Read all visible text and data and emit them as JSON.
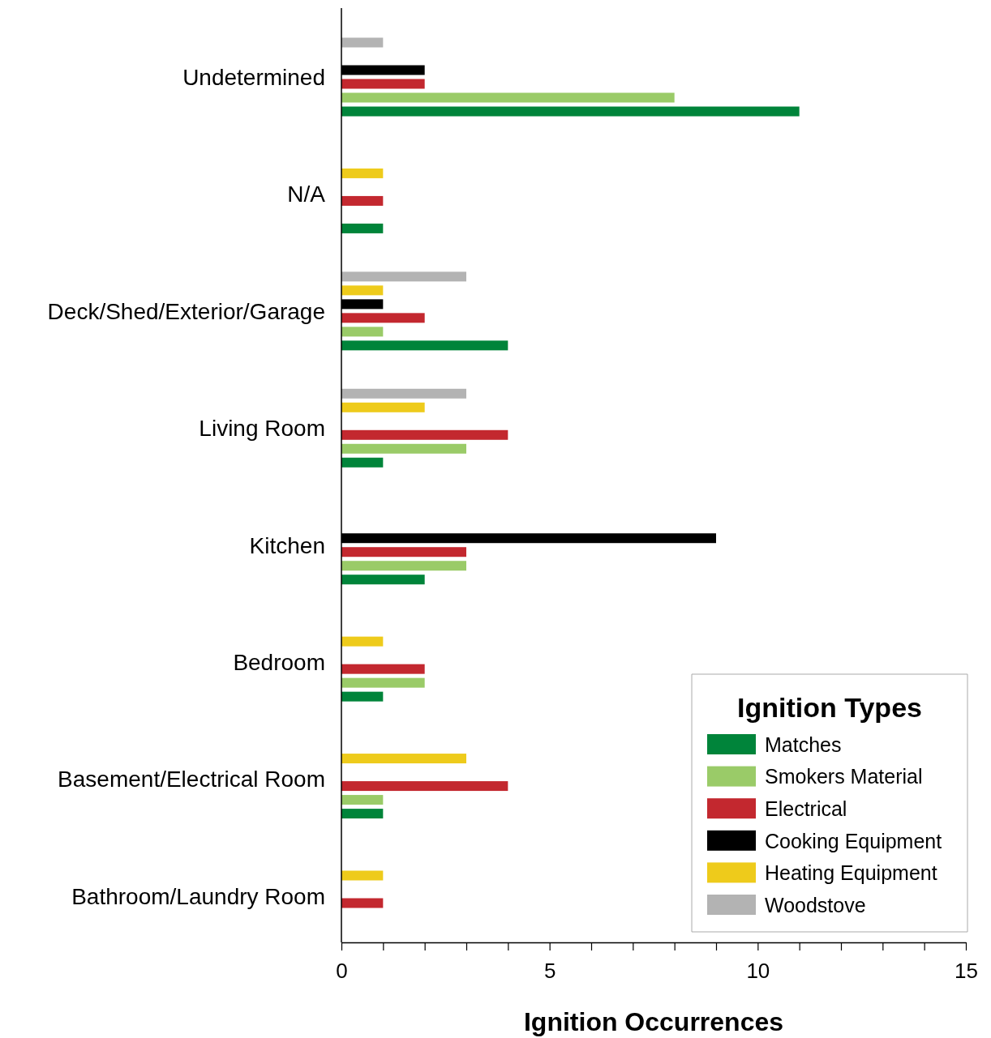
{
  "chart_data": {
    "type": "bar",
    "orientation": "horizontal",
    "xlabel": "Ignition Occurrences",
    "legend_title": "Ignition Types",
    "legend": "bottom right",
    "grid": false,
    "categories": [
      "Undetermined",
      "N/A",
      "Deck/Shed/Exterior/Garage",
      "Living Room",
      "Kitchen",
      "Bedroom",
      "Basement/Electrical Room",
      "Bathroom/Laundry Room"
    ],
    "xlim": [
      0,
      15
    ],
    "xticks": [
      0,
      {
        "value": 1,
        "label": null
      },
      {
        "value": 2,
        "label": null
      },
      {
        "value": 3,
        "label": null
      },
      {
        "value": 4,
        "label": null
      },
      5,
      {
        "value": 6,
        "label": null
      },
      {
        "value": 7,
        "label": null
      },
      {
        "value": 8,
        "label": null
      },
      {
        "value": 9,
        "label": null
      },
      10,
      {
        "value": 11,
        "label": null
      },
      {
        "value": 12,
        "label": null
      },
      {
        "value": 13,
        "label": null
      },
      {
        "value": 14,
        "label": null
      },
      15
    ],
    "series": [
      {
        "name": "Matches",
        "color": "#00843a",
        "values": [
          11,
          1,
          4,
          1,
          2,
          1,
          1,
          0
        ]
      },
      {
        "name": "Smokers Material",
        "color": "#9acb68",
        "values": [
          8,
          0,
          1,
          3,
          3,
          2,
          1,
          0
        ]
      },
      {
        "name": "Electrical",
        "color": "#c3282f",
        "values": [
          2,
          1,
          2,
          4,
          3,
          2,
          4,
          1
        ]
      },
      {
        "name": "Cooking Equipment",
        "color": "#000000",
        "values": [
          2,
          0,
          1,
          0,
          9,
          0,
          0,
          0
        ]
      },
      {
        "name": "Heating Equipment",
        "color": "#eecb1b",
        "values": [
          0,
          1,
          1,
          2,
          0,
          1,
          3,
          1
        ]
      },
      {
        "name": "Woodstove",
        "color": "#b3b3b3",
        "values": [
          1,
          0,
          3,
          3,
          0,
          0,
          0,
          0
        ]
      }
    ]
  }
}
